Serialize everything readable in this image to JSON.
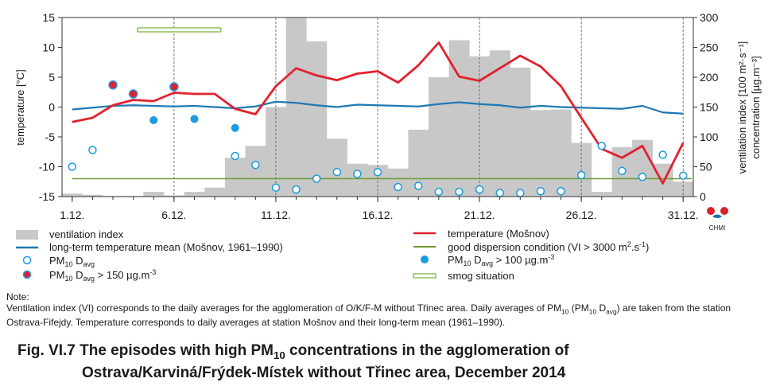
{
  "chart_data": {
    "type": "combo",
    "x_tick_labels": [
      "1.12.",
      "6.12.",
      "11.12.",
      "16.12.",
      "21.12.",
      "26.12.",
      "31.12."
    ],
    "days": [
      1,
      2,
      3,
      4,
      5,
      6,
      7,
      8,
      9,
      10,
      11,
      12,
      13,
      14,
      15,
      16,
      17,
      18,
      19,
      20,
      21,
      22,
      23,
      24,
      25,
      26,
      27,
      28,
      29,
      30,
      31
    ],
    "left_axis": {
      "label": "temperature  [°C]",
      "ylim": [
        -15,
        15
      ],
      "ticks": [
        "15",
        "10",
        "5",
        "0",
        "-5",
        "-10",
        "-15"
      ]
    },
    "right_axis": {
      "label_1": "ventilation index  [100 m²·s⁻¹]",
      "label_2": "concentration  [µg.m⁻³]",
      "ylim": [
        0,
        300
      ],
      "ticks": [
        "300",
        "250",
        "200",
        "150",
        "100",
        "50",
        "0"
      ]
    },
    "ventilation_index": [
      5,
      3,
      1,
      1,
      8,
      2,
      8,
      15,
      65,
      85,
      150,
      300,
      260,
      97,
      55,
      53,
      47,
      112,
      200,
      262,
      235,
      245,
      216,
      145,
      146,
      90,
      8,
      83,
      95,
      55,
      25
    ],
    "temperature": [
      -2.5,
      -1.8,
      0.3,
      1.2,
      1.0,
      2.4,
      2.2,
      2.2,
      -0.3,
      -1.2,
      3.5,
      6.5,
      5.3,
      4.5,
      5.6,
      6.0,
      4.1,
      7.0,
      10.8,
      5.1,
      4.4,
      6.5,
      8.6,
      6.8,
      3.5,
      -1.8,
      -7.0,
      -8.5,
      -6.5,
      -12.8,
      -6.0
    ],
    "longterm_mean": [
      -0.4,
      -0.1,
      0.2,
      0.3,
      0.2,
      0.1,
      0.2,
      0.0,
      -0.2,
      0.1,
      0.9,
      0.7,
      0.3,
      0.0,
      0.4,
      0.3,
      0.2,
      0.1,
      0.5,
      0.8,
      0.5,
      0.3,
      -0.1,
      0.2,
      0.0,
      -0.1,
      -0.2,
      -0.3,
      0.2,
      -0.9,
      -1.1
    ],
    "pm10_daily_avg": [
      {
        "day": 1,
        "value": 50
      },
      {
        "day": 2,
        "value": 78
      },
      {
        "day": 9,
        "value": 68
      },
      {
        "day": 10,
        "value": 53
      },
      {
        "day": 11,
        "value": 15
      },
      {
        "day": 12,
        "value": 12
      },
      {
        "day": 13,
        "value": 30
      },
      {
        "day": 14,
        "value": 41
      },
      {
        "day": 15,
        "value": 38
      },
      {
        "day": 16,
        "value": 41
      },
      {
        "day": 17,
        "value": 16
      },
      {
        "day": 18,
        "value": 18
      },
      {
        "day": 19,
        "value": 8
      },
      {
        "day": 20,
        "value": 8
      },
      {
        "day": 21,
        "value": 12
      },
      {
        "day": 22,
        "value": 6
      },
      {
        "day": 23,
        "value": 6
      },
      {
        "day": 24,
        "value": 9
      },
      {
        "day": 25,
        "value": 9
      },
      {
        "day": 26,
        "value": 36
      },
      {
        "day": 27,
        "value": 85
      },
      {
        "day": 28,
        "value": 43
      },
      {
        "day": 29,
        "value": 33
      },
      {
        "day": 30,
        "value": 70
      },
      {
        "day": 31,
        "value": 35
      }
    ],
    "pm10_over_100": [
      {
        "day": 5,
        "value": 128
      },
      {
        "day": 7,
        "value": 130
      },
      {
        "day": 9,
        "value": 115
      }
    ],
    "pm10_over_150": [
      {
        "day": 3,
        "value": 187
      },
      {
        "day": 4,
        "value": 172
      },
      {
        "day": 6,
        "value": 184
      }
    ],
    "good_dispersion_threshold": 30,
    "smog_situation": {
      "start_day": 4.2,
      "end_day": 8.3
    },
    "colors": {
      "ventilation_index": "#c8c8c8",
      "temperature": "#e2212e",
      "longterm_mean": "#1f78b4",
      "pm10_marker": "#1a9be0",
      "good_dispersion": "#6b9d2f",
      "smog": "#8fbf5a",
      "grid": "#555555"
    }
  },
  "legend": {
    "ventilation_index": "ventilation index",
    "longterm_mean": "long-term temperature mean (Mošnov, 1961–1990)",
    "pm10_prefix": "PM",
    "pm10_sub": "10",
    "pm10_davg": " D",
    "pm10_davg_sub": "avg",
    "pm10_150_suffix": " > 150 µg.m",
    "pm10_100_suffix": " > 100 µg.m",
    "unit_sup": "-3",
    "temperature": "temperature (Mošnov)",
    "good_dispersion": "good dispersion condition (VI > 3000 m",
    "good_dispersion_sup1": "2",
    "good_dispersion_mid": ".s",
    "good_dispersion_sup2": "-1",
    "good_dispersion_end": ")",
    "smog": "smog situation"
  },
  "logo": {
    "text": "CHMI"
  },
  "note": {
    "heading": "Note:",
    "text_1": "Ventilation index (VI) corresponds to the daily averages for the agglomeration of O/K/F-M without Třinec area. Daily averages of PM",
    "text_sub1": "10",
    "text_2": " (PM",
    "text_sub2": "10",
    "text_3": " D",
    "text_sub3": "avg",
    "text_4": ") are taken from the station Ostrava-Fifejdy. Temperature corresponds to daily averages at station Mošnov and their long-term mean (1961–1990)."
  },
  "caption": {
    "line1_a": "Fig. VI.7  The episodes with high PM",
    "line1_sub": "10",
    "line1_b": " concentrations in the agglomeration of",
    "line2": "Ostrava/Karviná/Frýdek-Místek without Třinec area, December 2014"
  }
}
